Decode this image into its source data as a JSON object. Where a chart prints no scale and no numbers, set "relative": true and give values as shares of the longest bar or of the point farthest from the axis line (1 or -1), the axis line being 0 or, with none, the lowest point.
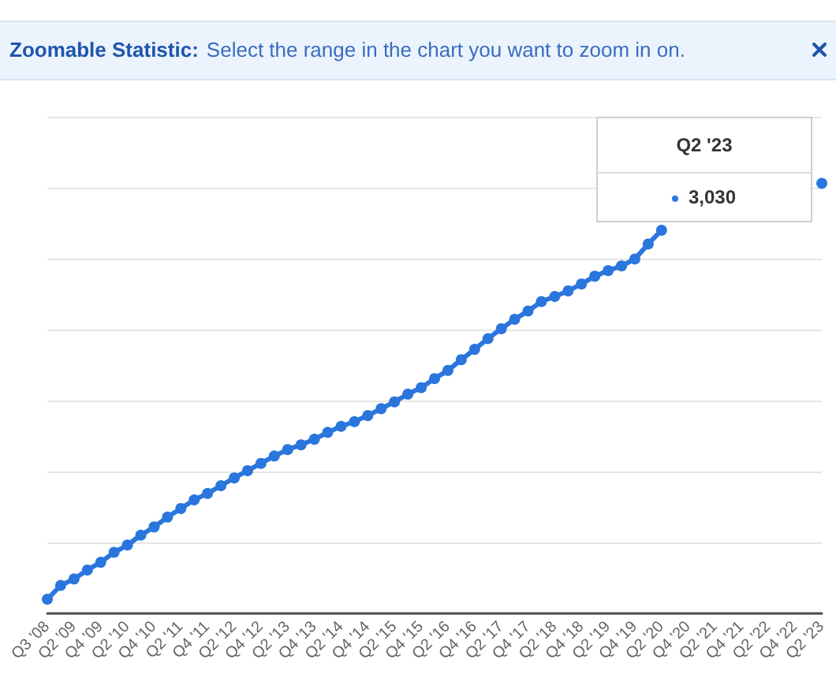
{
  "chart_data": {
    "type": "line",
    "categories": [
      "Q3 '08",
      null,
      "Q2 '09",
      null,
      "Q4 '09",
      null,
      "Q2 '10",
      null,
      "Q4 '10",
      null,
      "Q2 '11",
      null,
      "Q4 '11",
      null,
      "Q2 '12",
      null,
      "Q4 '12",
      null,
      "Q2 '13",
      null,
      "Q4 '13",
      null,
      "Q2 '14",
      null,
      "Q4 '14",
      null,
      "Q2 '15",
      null,
      "Q4 '15",
      null,
      "Q2 '16",
      null,
      "Q4 '16",
      null,
      "Q2 '17",
      null,
      "Q4 '17",
      null,
      "Q2 '18",
      null,
      "Q4 '18",
      null,
      "Q2 '19",
      null,
      "Q4 '19",
      null,
      "Q2 '20",
      null,
      "Q4 '20",
      null,
      "Q2 '21",
      null,
      "Q4 '21",
      null,
      "Q2 '22",
      null,
      "Q4 '22",
      null,
      "Q2 '23"
    ],
    "values": [
      0.033,
      0.065,
      0.08,
      0.101,
      0.119,
      0.142,
      0.159,
      0.182,
      0.201,
      0.224,
      0.244,
      0.264,
      0.279,
      0.297,
      0.315,
      0.332,
      0.349,
      0.366,
      0.381,
      0.392,
      0.405,
      0.421,
      0.435,
      0.446,
      0.46,
      0.476,
      0.492,
      0.51,
      0.525,
      0.546,
      0.565,
      0.59,
      0.614,
      0.639,
      0.662,
      0.684,
      0.703,
      0.725,
      0.737,
      0.75,
      0.766,
      0.784,
      0.797,
      0.808,
      0.824,
      0.859,
      0.891,
      null,
      null,
      null,
      null,
      null,
      null,
      null,
      null,
      null,
      null,
      null,
      1
    ],
    "color": "#2a76dd",
    "relative": true,
    "marker": "circle",
    "line_style": "solid",
    "grid": "y",
    "tick_labels": "x",
    "annotations": [
      "Zoomable Statistic:",
      "Select the range in the chart you want to zoom in on.",
      "Q2 '23",
      "3,030"
    ]
  }
}
